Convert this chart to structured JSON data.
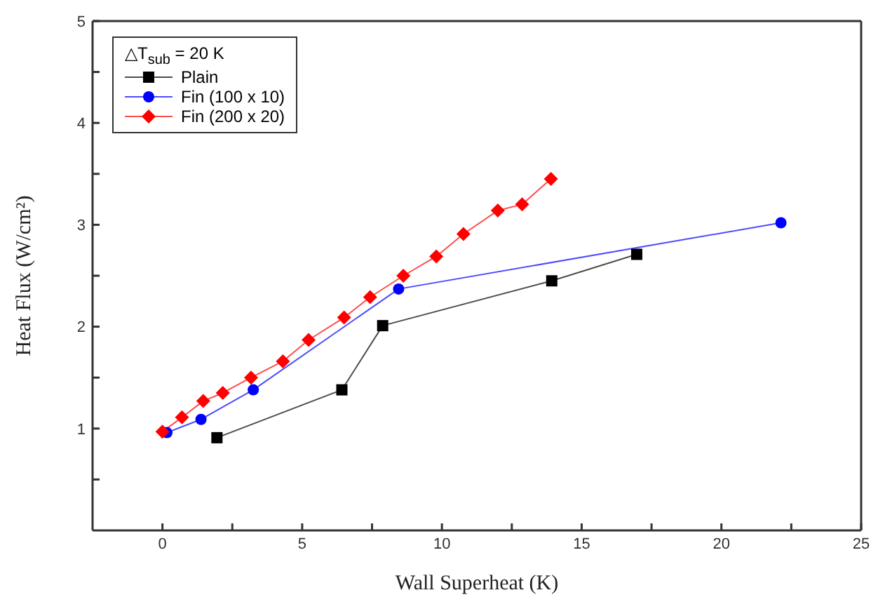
{
  "chart_data": {
    "type": "line",
    "xlabel": "Wall Superheat (K)",
    "ylabel": "Heat Flux (W/cm²)",
    "legend_title": "△T$_{sub}$ = 20 K",
    "legend": "top left",
    "grid": false,
    "line_style": "solid",
    "xlim": [
      -2.5,
      25
    ],
    "xticks": [
      0,
      {
        "value": 2.5,
        "label": null
      },
      5,
      {
        "value": 7.5,
        "label": null
      },
      10,
      {
        "value": 12.5,
        "label": null
      },
      15,
      {
        "value": 17.5,
        "label": null
      },
      20,
      {
        "value": 22.5,
        "label": null
      },
      25
    ],
    "ylim": [
      0,
      5
    ],
    "yticks": [
      {
        "value": 0.5,
        "label": null
      },
      1,
      {
        "value": 1.5,
        "label": null
      },
      2,
      {
        "value": 2.5,
        "label": null
      },
      3,
      {
        "value": 3.5,
        "label": null
      },
      4,
      {
        "value": 4.5,
        "label": null
      },
      5
    ],
    "series": [
      {
        "name": "Plain",
        "color": "#000000",
        "marker": "square",
        "x": [
          1.95,
          6.42,
          7.88,
          13.93,
          16.97
        ],
        "values": [
          0.91,
          1.38,
          2.01,
          2.45,
          2.71
        ]
      },
      {
        "name": "Fin (100 x 10)",
        "color": "#0000ff",
        "marker": "circle",
        "x": [
          0.16,
          1.38,
          3.25,
          8.45,
          22.13
        ],
        "values": [
          0.96,
          1.09,
          1.38,
          2.37,
          3.02
        ]
      },
      {
        "name": "Fin (200 x 20)",
        "color": "#ff0000",
        "marker": "diamond",
        "x": [
          0,
          0.7,
          1.46,
          2.16,
          3.17,
          4.31,
          5.23,
          6.5,
          7.43,
          8.62,
          9.8,
          10.77,
          12.0,
          12.87,
          13.9
        ],
        "values": [
          0.97,
          1.11,
          1.27,
          1.35,
          1.5,
          1.66,
          1.87,
          2.09,
          2.29,
          2.5,
          2.69,
          2.91,
          3.14,
          3.2,
          3.45
        ]
      }
    ]
  }
}
